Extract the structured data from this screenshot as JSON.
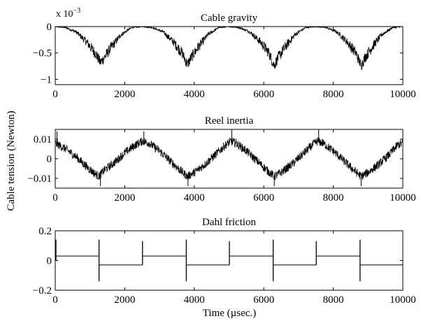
{
  "figure": {
    "ylabel": "Cable tension (Newton)",
    "xlabel": "Time (µsec.)"
  },
  "chart_data": [
    {
      "type": "line",
      "title": "Cable gravity",
      "xlabel": "",
      "ylabel": "",
      "xlim": [
        0,
        10000
      ],
      "ylim": [
        -0.0011,
        0
      ],
      "x_ticks": [
        0,
        2000,
        4000,
        6000,
        8000,
        10000
      ],
      "x_tick_labels": [
        "0",
        "2000",
        "4000",
        "6000",
        "8000",
        "10000"
      ],
      "y_ticks": [
        0,
        -0.0005,
        -0.001
      ],
      "y_tick_labels": [
        "0",
        "−0.5",
        "−1"
      ],
      "y_scale_label": "x 10",
      "y_scale_exponent": "−3",
      "grid": false,
      "series": [
        {
          "color": "#000000",
          "noise": "high-frequency oscillation that grows near each minimum",
          "points": [
            [
              0,
              0
            ],
            [
              300,
              -2e-05
            ],
            [
              600,
              -0.0001
            ],
            [
              900,
              -0.00029
            ],
            [
              1150,
              -0.0005
            ],
            [
              1300,
              -0.00068
            ],
            [
              1400,
              -0.0006
            ],
            [
              1600,
              -0.0004
            ],
            [
              1900,
              -0.00015
            ],
            [
              2200,
              -2e-05
            ],
            [
              2500,
              0
            ],
            [
              2800,
              -2e-05
            ],
            [
              3100,
              -0.0001
            ],
            [
              3400,
              -0.00029
            ],
            [
              3650,
              -0.0005
            ],
            [
              3800,
              -0.00072
            ],
            [
              3900,
              -0.0006
            ],
            [
              4100,
              -0.0004
            ],
            [
              4400,
              -0.00015
            ],
            [
              4700,
              -2e-05
            ],
            [
              5000,
              0
            ],
            [
              5300,
              -2e-05
            ],
            [
              5600,
              -0.0001
            ],
            [
              5900,
              -0.00029
            ],
            [
              6150,
              -0.0005
            ],
            [
              6300,
              -0.00074
            ],
            [
              6400,
              -0.0006
            ],
            [
              6600,
              -0.0004
            ],
            [
              6900,
              -0.00015
            ],
            [
              7200,
              -2e-05
            ],
            [
              7500,
              0
            ],
            [
              7800,
              -2e-05
            ],
            [
              8100,
              -0.0001
            ],
            [
              8400,
              -0.00029
            ],
            [
              8650,
              -0.0005
            ],
            [
              8800,
              -0.00074
            ],
            [
              8900,
              -0.0006
            ],
            [
              9100,
              -0.0004
            ],
            [
              9400,
              -0.00015
            ],
            [
              9700,
              -2e-05
            ],
            [
              10000,
              0
            ]
          ]
        }
      ]
    },
    {
      "type": "line",
      "title": "Reel inertia",
      "xlabel": "",
      "ylabel": "",
      "xlim": [
        0,
        10000
      ],
      "ylim": [
        -0.015,
        0.015
      ],
      "x_ticks": [
        0,
        2000,
        4000,
        6000,
        8000,
        10000
      ],
      "x_tick_labels": [
        "0",
        "2000",
        "4000",
        "6000",
        "8000",
        "10000"
      ],
      "y_ticks": [
        0.01,
        0,
        -0.01
      ],
      "y_tick_labels": [
        "0.01",
        "0",
        "−0.01"
      ],
      "grid": false,
      "series": [
        {
          "color": "#000000",
          "noise": "dense high-frequency oscillation about ±0.002 with spikes near the extremes",
          "points": [
            [
              0,
              0.008
            ],
            [
              300,
              0.005
            ],
            [
              600,
              0.001
            ],
            [
              900,
              -0.004
            ],
            [
              1100,
              -0.007
            ],
            [
              1250,
              -0.009
            ],
            [
              1400,
              -0.006
            ],
            [
              1700,
              -0.002
            ],
            [
              2000,
              0.003
            ],
            [
              2300,
              0.007
            ],
            [
              2500,
              0.009
            ],
            [
              2700,
              0.008
            ],
            [
              3000,
              0.004
            ],
            [
              3300,
              -0.001
            ],
            [
              3600,
              -0.006
            ],
            [
              3800,
              -0.009
            ],
            [
              4000,
              -0.007
            ],
            [
              4300,
              -0.003
            ],
            [
              4600,
              0.002
            ],
            [
              4900,
              0.007
            ],
            [
              5050,
              0.009
            ],
            [
              5200,
              0.008
            ],
            [
              5500,
              0.004
            ],
            [
              5800,
              -0.001
            ],
            [
              6100,
              -0.006
            ],
            [
              6300,
              -0.009
            ],
            [
              6500,
              -0.007
            ],
            [
              6800,
              -0.003
            ],
            [
              7100,
              0.002
            ],
            [
              7400,
              0.007
            ],
            [
              7550,
              0.009
            ],
            [
              7700,
              0.008
            ],
            [
              8000,
              0.004
            ],
            [
              8300,
              -0.001
            ],
            [
              8600,
              -0.006
            ],
            [
              8800,
              -0.009
            ],
            [
              9000,
              -0.007
            ],
            [
              9300,
              -0.003
            ],
            [
              9600,
              0.002
            ],
            [
              9850,
              0.007
            ],
            [
              10000,
              0.008
            ]
          ],
          "spikes": [
            [
              50,
              0.014
            ],
            [
              1300,
              -0.014
            ],
            [
              2550,
              0.014
            ],
            [
              3820,
              -0.014
            ],
            [
              5080,
              0.015
            ],
            [
              6300,
              -0.014
            ],
            [
              7580,
              0.015
            ],
            [
              8800,
              -0.014
            ]
          ]
        }
      ]
    },
    {
      "type": "line",
      "title": "Dahl friction",
      "xlabel": "Time (µsec.)",
      "ylabel": "",
      "xlim": [
        0,
        10000
      ],
      "ylim": [
        -0.2,
        0.2
      ],
      "x_ticks": [
        0,
        2000,
        4000,
        6000,
        8000,
        10000
      ],
      "x_tick_labels": [
        "0",
        "2000",
        "4000",
        "6000",
        "8000",
        "10000"
      ],
      "y_ticks": [
        0.2,
        0,
        -0.2
      ],
      "y_tick_labels": [
        "0.2",
        "0",
        "−0.2"
      ],
      "grid": false,
      "series": [
        {
          "color": "#000000",
          "levels": {
            "high": 0.03,
            "low": -0.03
          },
          "segments": [
            {
              "x0": 0,
              "x1": 1260,
              "y": 0.03
            },
            {
              "x0": 1260,
              "x1": 2510,
              "y": -0.03
            },
            {
              "x0": 2510,
              "x1": 3770,
              "y": 0.03
            },
            {
              "x0": 3770,
              "x1": 5010,
              "y": -0.03
            },
            {
              "x0": 5010,
              "x1": 6270,
              "y": 0.03
            },
            {
              "x0": 6270,
              "x1": 7510,
              "y": -0.03
            },
            {
              "x0": 7510,
              "x1": 8770,
              "y": 0.03
            },
            {
              "x0": 8770,
              "x1": 10000,
              "y": -0.03
            }
          ],
          "switch_spikes": [
            {
              "x": 20,
              "low": 0.0,
              "high": 0.14
            },
            {
              "x": 1260,
              "low": -0.14,
              "high": 0.14
            },
            {
              "x": 2510,
              "low": -0.03,
              "high": 0.13
            },
            {
              "x": 3770,
              "low": -0.14,
              "high": 0.14
            },
            {
              "x": 5010,
              "low": -0.03,
              "high": 0.13
            },
            {
              "x": 6270,
              "low": -0.14,
              "high": 0.14
            },
            {
              "x": 7510,
              "low": -0.03,
              "high": 0.13
            },
            {
              "x": 8770,
              "low": -0.14,
              "high": 0.14
            }
          ]
        }
      ]
    }
  ]
}
